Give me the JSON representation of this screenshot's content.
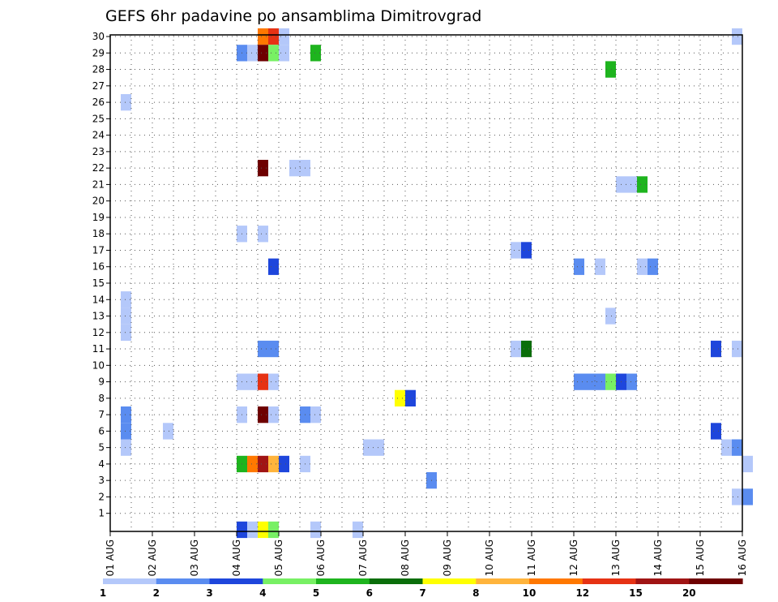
{
  "chart_data": {
    "type": "heatmap",
    "title": "GEFS 6hr padavine po ansamblima Dimitrovgrad",
    "xlabel": "",
    "ylabel": "",
    "x_range_days": [
      0,
      15
    ],
    "step_hours": 6,
    "y_range": [
      0,
      30
    ],
    "y_ticks": [
      1,
      2,
      3,
      4,
      5,
      6,
      7,
      8,
      9,
      10,
      11,
      12,
      13,
      14,
      15,
      16,
      17,
      18,
      19,
      20,
      21,
      22,
      23,
      24,
      25,
      26,
      27,
      28,
      29,
      30
    ],
    "x_tick_labels": [
      "01 AUG",
      "02 AUG",
      "03 AUG",
      "04 AUG",
      "05 AUG",
      "06 AUG",
      "07 AUG",
      "08 AUG",
      "09 AUG",
      "10 AUG",
      "11 AUG",
      "12 AUG",
      "13 AUG",
      "14 AUG",
      "15 AUG",
      "16 AUG"
    ],
    "grid": true,
    "legend_labels": [
      "1",
      "2",
      "3",
      "4",
      "5",
      "6",
      "7",
      "8",
      "10",
      "12",
      "15",
      "20"
    ],
    "legend_placement": "bottom",
    "colors": [
      "#b4c8fa",
      "#5a8cf0",
      "#1e46dc",
      "#78f064",
      "#1eb41e",
      "#0a6e0a",
      "#ffff00",
      "#ffb43c",
      "#ff7800",
      "#e63214",
      "#a01414",
      "#6e0000"
    ],
    "cells": [
      {
        "t": 3.5,
        "m": 30,
        "c": 8
      },
      {
        "t": 3.75,
        "m": 30,
        "c": 9
      },
      {
        "t": 4,
        "m": 30,
        "c": 0
      },
      {
        "t": 3,
        "m": 29,
        "c": 1
      },
      {
        "t": 3.25,
        "m": 29,
        "c": 0
      },
      {
        "t": 3.5,
        "m": 29,
        "c": 11
      },
      {
        "t": 3.75,
        "m": 29,
        "c": 3
      },
      {
        "t": 4,
        "m": 29,
        "c": 0
      },
      {
        "t": 4.75,
        "m": 29,
        "c": 4
      },
      {
        "t": 14.75,
        "m": 30,
        "c": 0
      },
      {
        "t": 11.75,
        "m": 28,
        "c": 4
      },
      {
        "t": 0.25,
        "m": 26,
        "c": 0
      },
      {
        "t": 3.5,
        "m": 22,
        "c": 11
      },
      {
        "t": 4.25,
        "m": 22,
        "c": 0
      },
      {
        "t": 4.5,
        "m": 22,
        "c": 0
      },
      {
        "t": 12,
        "m": 21,
        "c": 0
      },
      {
        "t": 12.25,
        "m": 21,
        "c": 0
      },
      {
        "t": 12.5,
        "m": 21,
        "c": 4
      },
      {
        "t": 3,
        "m": 18,
        "c": 0
      },
      {
        "t": 3.5,
        "m": 18,
        "c": 0
      },
      {
        "t": 9.5,
        "m": 17,
        "c": 0
      },
      {
        "t": 9.75,
        "m": 17,
        "c": 2
      },
      {
        "t": 3.75,
        "m": 16,
        "c": 2
      },
      {
        "t": 11,
        "m": 16,
        "c": 1
      },
      {
        "t": 11.5,
        "m": 16,
        "c": 0
      },
      {
        "t": 12.5,
        "m": 16,
        "c": 0
      },
      {
        "t": 12.75,
        "m": 16,
        "c": 1
      },
      {
        "t": 0.25,
        "m": 14,
        "c": 0
      },
      {
        "t": 0.25,
        "m": 13,
        "c": 0
      },
      {
        "t": 0.25,
        "m": 12,
        "c": 0
      },
      {
        "t": 11.75,
        "m": 13,
        "c": 0
      },
      {
        "t": 3.5,
        "m": 11,
        "c": 1
      },
      {
        "t": 3.75,
        "m": 11,
        "c": 1
      },
      {
        "t": 9.5,
        "m": 11,
        "c": 0
      },
      {
        "t": 9.75,
        "m": 11,
        "c": 5
      },
      {
        "t": 14.25,
        "m": 11,
        "c": 2
      },
      {
        "t": 14.75,
        "m": 11,
        "c": 0
      },
      {
        "t": 3,
        "m": 9,
        "c": 0
      },
      {
        "t": 3.25,
        "m": 9,
        "c": 0
      },
      {
        "t": 3.5,
        "m": 9,
        "c": 9
      },
      {
        "t": 3.75,
        "m": 9,
        "c": 0
      },
      {
        "t": 11,
        "m": 9,
        "c": 1
      },
      {
        "t": 11.25,
        "m": 9,
        "c": 1
      },
      {
        "t": 11.5,
        "m": 9,
        "c": 1
      },
      {
        "t": 11.75,
        "m": 9,
        "c": 3
      },
      {
        "t": 12,
        "m": 9,
        "c": 2
      },
      {
        "t": 12.25,
        "m": 9,
        "c": 1
      },
      {
        "t": 6.75,
        "m": 8,
        "c": 6
      },
      {
        "t": 7,
        "m": 8,
        "c": 2
      },
      {
        "t": 0.25,
        "m": 7,
        "c": 1
      },
      {
        "t": 0.25,
        "m": 6,
        "c": 1
      },
      {
        "t": 0.25,
        "m": 5,
        "c": 0
      },
      {
        "t": 3,
        "m": 7,
        "c": 0
      },
      {
        "t": 3.5,
        "m": 7,
        "c": 11
      },
      {
        "t": 3.75,
        "m": 7,
        "c": 0
      },
      {
        "t": 4.5,
        "m": 7,
        "c": 1
      },
      {
        "t": 4.75,
        "m": 7,
        "c": 0
      },
      {
        "t": 1.25,
        "m": 6,
        "c": 0
      },
      {
        "t": 14.25,
        "m": 6,
        "c": 2
      },
      {
        "t": 6,
        "m": 5,
        "c": 0
      },
      {
        "t": 6.25,
        "m": 5,
        "c": 0
      },
      {
        "t": 14.5,
        "m": 5,
        "c": 0
      },
      {
        "t": 14.75,
        "m": 5,
        "c": 1
      },
      {
        "t": 3,
        "m": 4,
        "c": 4
      },
      {
        "t": 3.25,
        "m": 4,
        "c": 8
      },
      {
        "t": 3.5,
        "m": 4,
        "c": 10
      },
      {
        "t": 3.75,
        "m": 4,
        "c": 7
      },
      {
        "t": 4,
        "m": 4,
        "c": 2
      },
      {
        "t": 4.5,
        "m": 4,
        "c": 0
      },
      {
        "t": 15,
        "m": 4,
        "c": 0
      },
      {
        "t": 7.5,
        "m": 3,
        "c": 1
      },
      {
        "t": 14.75,
        "m": 2,
        "c": 0
      },
      {
        "t": 15,
        "m": 2,
        "c": 1
      },
      {
        "t": 3,
        "m": 0,
        "c": 2
      },
      {
        "t": 3.25,
        "m": 0,
        "c": 0
      },
      {
        "t": 3.5,
        "m": 0,
        "c": 6
      },
      {
        "t": 3.75,
        "m": 0,
        "c": 3
      },
      {
        "t": 4.75,
        "m": 0,
        "c": 0
      },
      {
        "t": 5.75,
        "m": 0,
        "c": 0
      }
    ]
  }
}
